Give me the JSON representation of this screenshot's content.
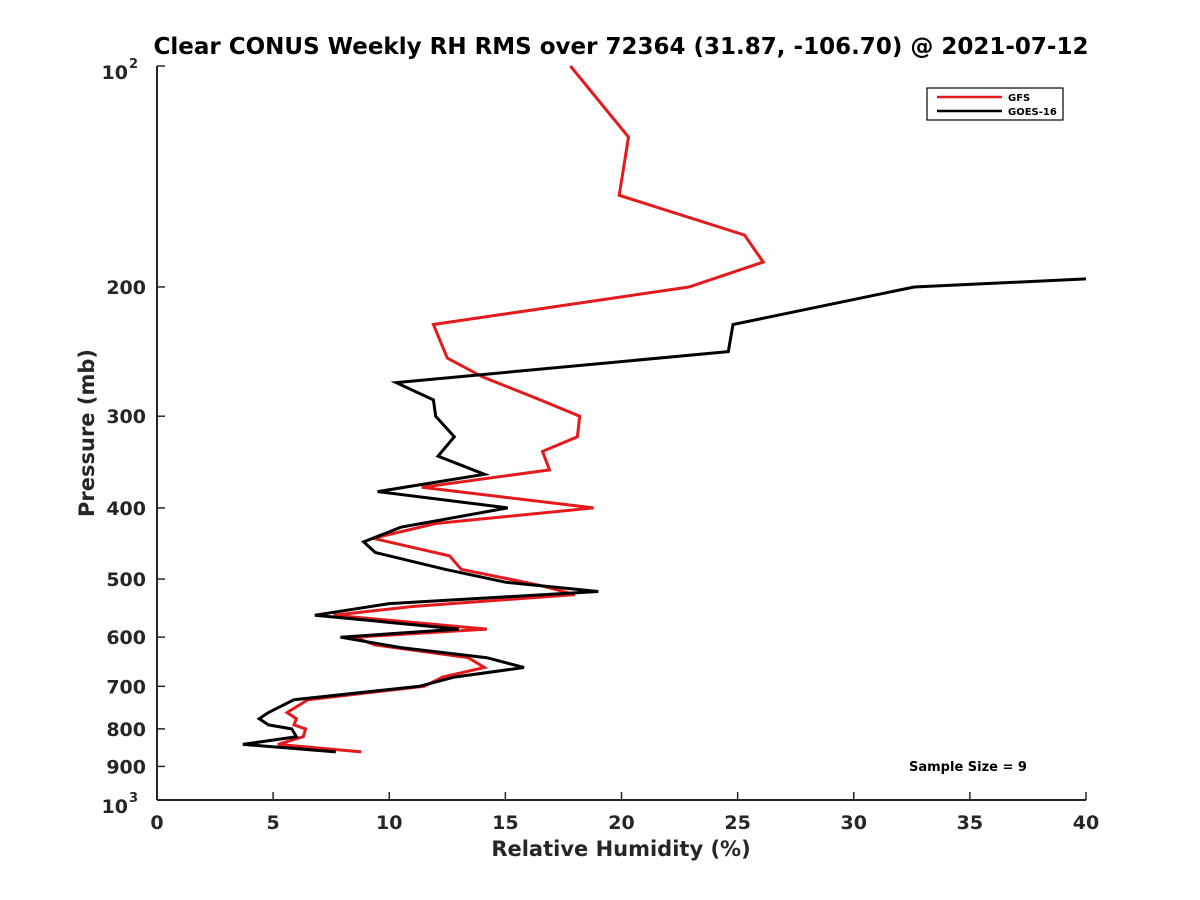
{
  "chart_data": {
    "type": "line",
    "title": "Clear CONUS Weekly RH RMS over 72364 (31.87, -106.70) @ 2021-07-12",
    "xlabel": "Relative Humidity (%)",
    "ylabel": "Pressure (mb)",
    "xlim": [
      0,
      40
    ],
    "ylim": [
      1000,
      100
    ],
    "y_scale": "log",
    "y_reversed": true,
    "grid": false,
    "legend_position": "top-right",
    "x_ticks": [
      0,
      5,
      10,
      15,
      20,
      25,
      30,
      35,
      40
    ],
    "y_ticks": [
      {
        "value": 100,
        "label": "10",
        "sup": "2"
      },
      {
        "value": 200,
        "label": "200",
        "sup": ""
      },
      {
        "value": 300,
        "label": "300",
        "sup": ""
      },
      {
        "value": 400,
        "label": "400",
        "sup": ""
      },
      {
        "value": 500,
        "label": "500",
        "sup": ""
      },
      {
        "value": 600,
        "label": "600",
        "sup": ""
      },
      {
        "value": 700,
        "label": "700",
        "sup": ""
      },
      {
        "value": 800,
        "label": "800",
        "sup": ""
      },
      {
        "value": 900,
        "label": "900",
        "sup": ""
      },
      {
        "value": 1000,
        "label": "10",
        "sup": "3"
      }
    ],
    "annotation": "Sample Size = 9",
    "series": [
      {
        "name": "GFS",
        "color": "#e41a1c",
        "points": [
          {
            "x": 17.8,
            "y": 100
          },
          {
            "x": 20.3,
            "y": 125
          },
          {
            "x": 19.9,
            "y": 150
          },
          {
            "x": 25.3,
            "y": 170
          },
          {
            "x": 26.1,
            "y": 185
          },
          {
            "x": 22.9,
            "y": 200
          },
          {
            "x": 11.9,
            "y": 225
          },
          {
            "x": 12.5,
            "y": 250
          },
          {
            "x": 14.0,
            "y": 265
          },
          {
            "x": 16.5,
            "y": 285
          },
          {
            "x": 18.2,
            "y": 300
          },
          {
            "x": 18.1,
            "y": 320
          },
          {
            "x": 16.6,
            "y": 335
          },
          {
            "x": 16.9,
            "y": 355
          },
          {
            "x": 11.4,
            "y": 375
          },
          {
            "x": 18.8,
            "y": 400
          },
          {
            "x": 12.0,
            "y": 420
          },
          {
            "x": 9.3,
            "y": 440
          },
          {
            "x": 12.6,
            "y": 465
          },
          {
            "x": 13.1,
            "y": 485
          },
          {
            "x": 16.5,
            "y": 510
          },
          {
            "x": 18.0,
            "y": 525
          },
          {
            "x": 11.0,
            "y": 545
          },
          {
            "x": 7.6,
            "y": 560
          },
          {
            "x": 14.2,
            "y": 585
          },
          {
            "x": 8.5,
            "y": 600
          },
          {
            "x": 9.4,
            "y": 615
          },
          {
            "x": 13.4,
            "y": 640
          },
          {
            "x": 14.1,
            "y": 660
          },
          {
            "x": 12.3,
            "y": 680
          },
          {
            "x": 11.5,
            "y": 700
          },
          {
            "x": 6.5,
            "y": 730
          },
          {
            "x": 5.6,
            "y": 760
          },
          {
            "x": 6.0,
            "y": 775
          },
          {
            "x": 5.9,
            "y": 790
          },
          {
            "x": 6.4,
            "y": 800
          },
          {
            "x": 6.3,
            "y": 820
          },
          {
            "x": 5.2,
            "y": 840
          },
          {
            "x": 8.8,
            "y": 860
          }
        ]
      },
      {
        "name": "GOES-16",
        "color": "#000000",
        "points": [
          {
            "x": 40.0,
            "y": 195
          },
          {
            "x": 32.6,
            "y": 200
          },
          {
            "x": 24.8,
            "y": 225
          },
          {
            "x": 24.6,
            "y": 245
          },
          {
            "x": 10.3,
            "y": 270
          },
          {
            "x": 11.9,
            "y": 285
          },
          {
            "x": 12.0,
            "y": 300
          },
          {
            "x": 12.8,
            "y": 320
          },
          {
            "x": 12.1,
            "y": 340
          },
          {
            "x": 14.1,
            "y": 360
          },
          {
            "x": 9.5,
            "y": 380
          },
          {
            "x": 15.1,
            "y": 400
          },
          {
            "x": 10.5,
            "y": 425
          },
          {
            "x": 8.9,
            "y": 445
          },
          {
            "x": 9.4,
            "y": 460
          },
          {
            "x": 12.4,
            "y": 485
          },
          {
            "x": 15.0,
            "y": 505
          },
          {
            "x": 19.0,
            "y": 520
          },
          {
            "x": 10.0,
            "y": 540
          },
          {
            "x": 6.8,
            "y": 560
          },
          {
            "x": 13.0,
            "y": 585
          },
          {
            "x": 7.9,
            "y": 600
          },
          {
            "x": 10.5,
            "y": 620
          },
          {
            "x": 14.2,
            "y": 640
          },
          {
            "x": 15.8,
            "y": 660
          },
          {
            "x": 12.8,
            "y": 680
          },
          {
            "x": 11.3,
            "y": 700
          },
          {
            "x": 5.9,
            "y": 730
          },
          {
            "x": 4.8,
            "y": 760
          },
          {
            "x": 4.4,
            "y": 775
          },
          {
            "x": 4.8,
            "y": 790
          },
          {
            "x": 5.8,
            "y": 800
          },
          {
            "x": 6.0,
            "y": 820
          },
          {
            "x": 3.7,
            "y": 840
          },
          {
            "x": 7.7,
            "y": 860
          }
        ]
      }
    ]
  }
}
